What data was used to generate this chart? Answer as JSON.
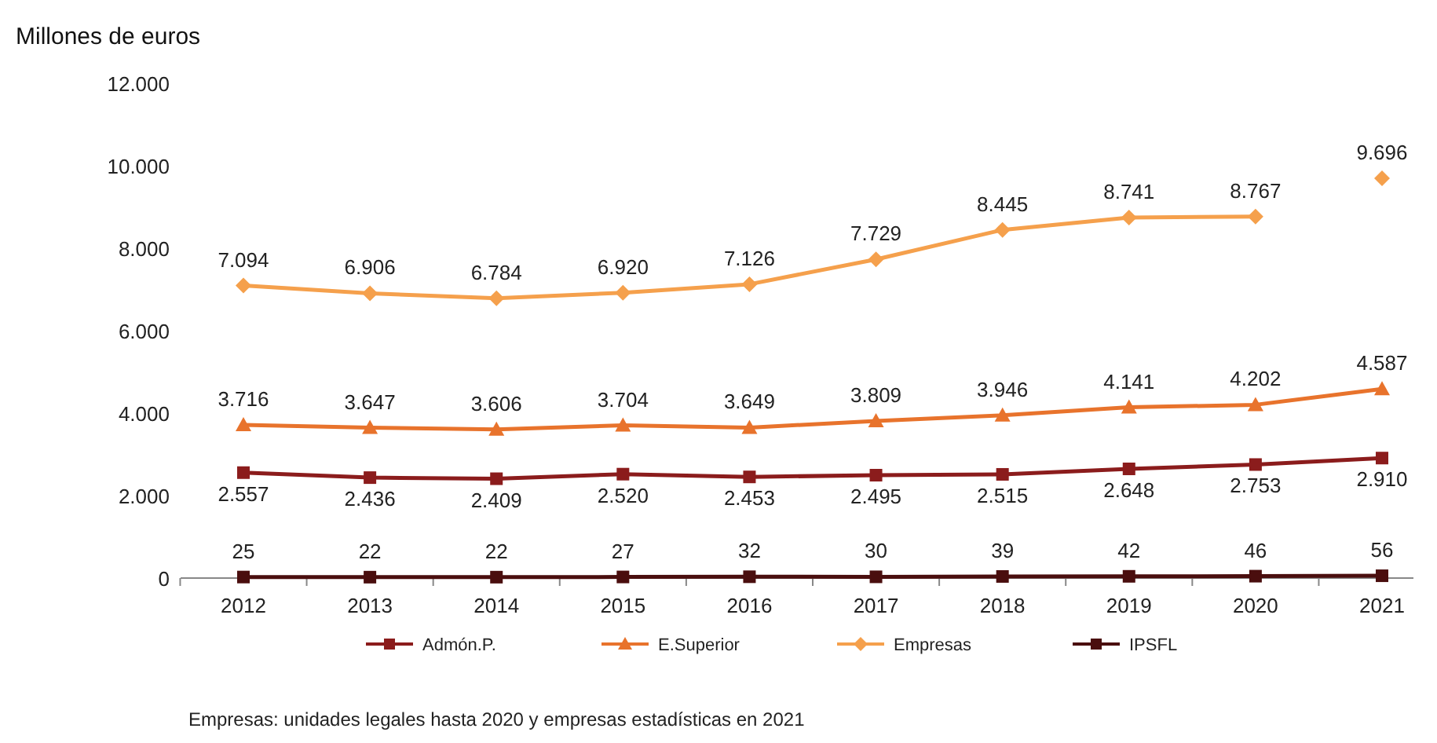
{
  "chart_data": {
    "type": "line",
    "ylabel": "Millones de euros",
    "categories": [
      "2012",
      "2013",
      "2014",
      "2015",
      "2016",
      "2017",
      "2018",
      "2019",
      "2020",
      "2021"
    ],
    "ylim": [
      0,
      12000
    ],
    "yticks": [
      {
        "value": 0,
        "label": "0"
      },
      {
        "value": 2000,
        "label": "2.000"
      },
      {
        "value": 4000,
        "label": "4.000"
      },
      {
        "value": 6000,
        "label": "6.000"
      },
      {
        "value": 8000,
        "label": "8.000"
      },
      {
        "value": 10000,
        "label": "10.000"
      },
      {
        "value": 12000,
        "label": "12.000"
      }
    ],
    "grid": false,
    "legend": "bottom",
    "series": [
      {
        "name": "Admón.P.",
        "color": "#8b1c1c",
        "marker": "square",
        "values": [
          2557,
          2436,
          2409,
          2520,
          2453,
          2495,
          2515,
          2648,
          2753,
          2910
        ],
        "value_labels": [
          "2.557",
          "2.436",
          "2.409",
          "2.520",
          "2.453",
          "2.495",
          "2.515",
          "2.648",
          "2.753",
          "2.910"
        ]
      },
      {
        "name": "E.Superior",
        "color": "#e8732c",
        "marker": "triangle",
        "values": [
          3716,
          3647,
          3606,
          3704,
          3649,
          3809,
          3946,
          4141,
          4202,
          4587
        ],
        "value_labels": [
          "3.716",
          "3.647",
          "3.606",
          "3.704",
          "3.649",
          "3.809",
          "3.946",
          "4.141",
          "4.202",
          "4.587"
        ]
      },
      {
        "name": "Empresas",
        "color": "#f5a04c",
        "marker": "diamond",
        "values": [
          7094,
          6906,
          6784,
          6920,
          7126,
          7729,
          8445,
          8741,
          8767,
          null
        ],
        "value_labels": [
          "7.094",
          "6.906",
          "6.784",
          "6.920",
          "7.126",
          "7.729",
          "8.445",
          "8.741",
          "8.767",
          null
        ]
      },
      {
        "name": "IPSFL",
        "color": "#4a0e0e",
        "marker": "square",
        "values": [
          25,
          22,
          22,
          27,
          32,
          30,
          39,
          42,
          46,
          56
        ],
        "value_labels": [
          "25",
          "22",
          "22",
          "27",
          "32",
          "30",
          "39",
          "42",
          "46",
          "56"
        ]
      },
      {
        "type": "scatter",
        "color": "#f5a04c",
        "marker": "diamond",
        "values": [
          null,
          null,
          null,
          null,
          null,
          null,
          null,
          null,
          null,
          9696
        ],
        "value_labels": [
          null,
          null,
          null,
          null,
          null,
          null,
          null,
          null,
          null,
          "9.696"
        ]
      }
    ],
    "annotations": [
      "Empresas: unidades legales hasta 2020 y empresas estadísticas en 2021"
    ]
  }
}
